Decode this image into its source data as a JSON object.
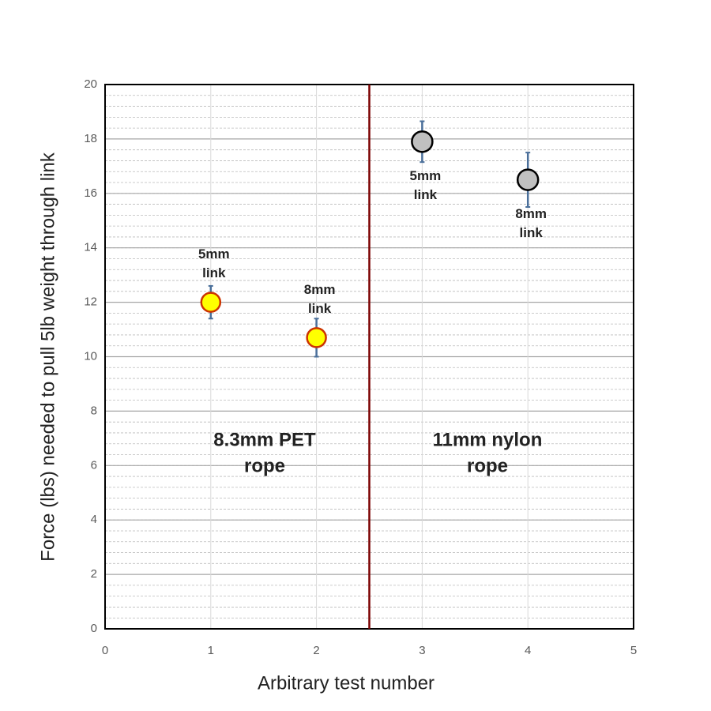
{
  "chart_data": {
    "type": "scatter",
    "xlabel": "Arbitrary test number",
    "ylabel": "Force (lbs) needed to pull 5lb weight through link",
    "xlim": [
      0,
      5
    ],
    "xticks": [
      0,
      1,
      2,
      3,
      4,
      5
    ],
    "ylim": [
      0,
      20
    ],
    "yticks": [
      0,
      2,
      4,
      6,
      8,
      10,
      12,
      14,
      16,
      18,
      20
    ],
    "minor_y_step": 0.4,
    "grid": true,
    "error_bar_color": "#4a6f9a",
    "vline": {
      "x": 2.5,
      "color": "#7b0000"
    },
    "series": [
      {
        "x": [
          1,
          2
        ],
        "values": [
          12.0,
          10.7
        ],
        "errors": [
          0.6,
          0.7
        ],
        "color": "#ffff00",
        "edgecolor": "#cc3300",
        "point_labels": [
          [
            "5mm",
            "link"
          ],
          [
            "8mm",
            "link"
          ]
        ]
      },
      {
        "x": [
          3,
          4
        ],
        "values": [
          17.9,
          16.5
        ],
        "errors": [
          0.75,
          1.0
        ],
        "color": "#c0c0c0",
        "edgecolor": "#000000",
        "point_labels": [
          [
            "5mm",
            "link"
          ],
          [
            "8mm",
            "link"
          ]
        ]
      }
    ],
    "region_labels": [
      [
        "8.3mm PET",
        "rope"
      ],
      [
        "11mm nylon",
        "rope"
      ]
    ]
  }
}
